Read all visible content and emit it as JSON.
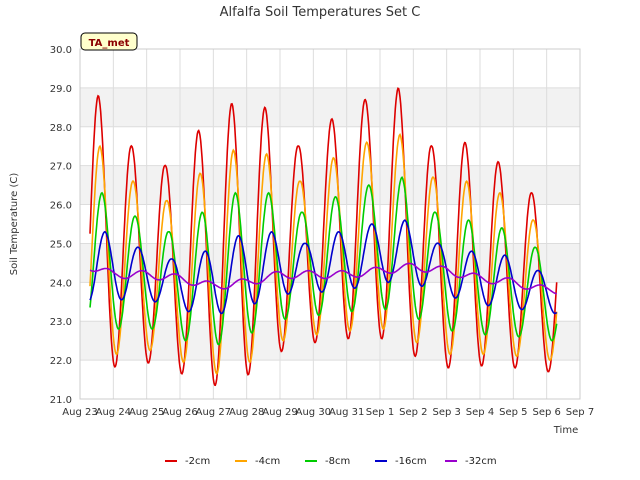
{
  "chart_data": {
    "type": "line",
    "title": "Alfalfa Soil Temperatures Set C",
    "xlabel": "Time",
    "ylabel": "Soil Temperature (C)",
    "badge": "TA_met",
    "ylim": [
      21.0,
      30.0
    ],
    "yticks": [
      "21.0",
      "22.0",
      "23.0",
      "24.0",
      "25.0",
      "26.0",
      "27.0",
      "28.0",
      "29.0",
      "30.0"
    ],
    "xlim": [
      0,
      15
    ],
    "xticks": [
      "Aug 23",
      "Aug 24",
      "Aug 25",
      "Aug 26",
      "Aug 27",
      "Aug 28",
      "Aug 29",
      "Aug 30",
      "Aug 31",
      "Sep 1",
      "Sep 2",
      "Sep 3",
      "Sep 4",
      "Sep 5",
      "Sep 6",
      "Sep 7"
    ],
    "grid": true,
    "legend_position": "bottom",
    "series": [
      {
        "name": "-2cm",
        "color": "#dd0000",
        "peaks": [
          28.8,
          27.5,
          27.0,
          27.9,
          28.6,
          28.5,
          27.5,
          28.2,
          28.7,
          29.0,
          27.5,
          27.6,
          27.1,
          26.3
        ],
        "troughs": [
          21.7,
          21.95,
          21.9,
          21.4,
          21.3,
          21.95,
          22.5,
          22.4,
          22.7,
          22.4,
          21.8,
          21.8,
          21.9,
          21.7
        ]
      },
      {
        "name": "-4cm",
        "color": "#ffa500",
        "peaks": [
          27.5,
          26.6,
          26.1,
          26.8,
          27.4,
          27.3,
          26.6,
          27.2,
          27.6,
          27.8,
          26.7,
          26.6,
          26.3,
          25.6
        ],
        "troughs": [
          22.0,
          22.3,
          22.2,
          21.7,
          21.6,
          22.3,
          22.7,
          22.6,
          22.9,
          22.7,
          22.2,
          22.1,
          22.2,
          22.0
        ]
      },
      {
        "name": "-8cm",
        "color": "#00cc00",
        "peaks": [
          26.3,
          25.7,
          25.3,
          25.8,
          26.3,
          26.3,
          25.8,
          26.2,
          26.5,
          26.7,
          25.8,
          25.6,
          25.4,
          24.9
        ],
        "troughs": [
          22.7,
          22.9,
          22.7,
          22.3,
          22.5,
          22.9,
          23.2,
          23.1,
          23.4,
          23.2,
          22.9,
          22.6,
          22.7,
          22.5
        ]
      },
      {
        "name": "-16cm",
        "color": "#0000cc",
        "peaks": [
          25.3,
          24.9,
          24.6,
          24.8,
          25.2,
          25.3,
          25.0,
          25.3,
          25.5,
          25.6,
          25.0,
          24.8,
          24.7,
          24.3
        ],
        "troughs": [
          23.5,
          23.6,
          23.4,
          23.1,
          23.3,
          23.6,
          23.8,
          23.7,
          24.0,
          24.0,
          23.8,
          23.4,
          23.4,
          23.2
        ]
      },
      {
        "name": "-32cm",
        "color": "#9900cc",
        "levels": [
          24.5,
          24.2,
          24.2,
          24.1,
          23.9,
          24.0,
          24.2,
          24.2,
          24.2,
          24.3,
          24.4,
          24.3,
          24.1,
          24.0,
          23.8
        ]
      }
    ]
  }
}
